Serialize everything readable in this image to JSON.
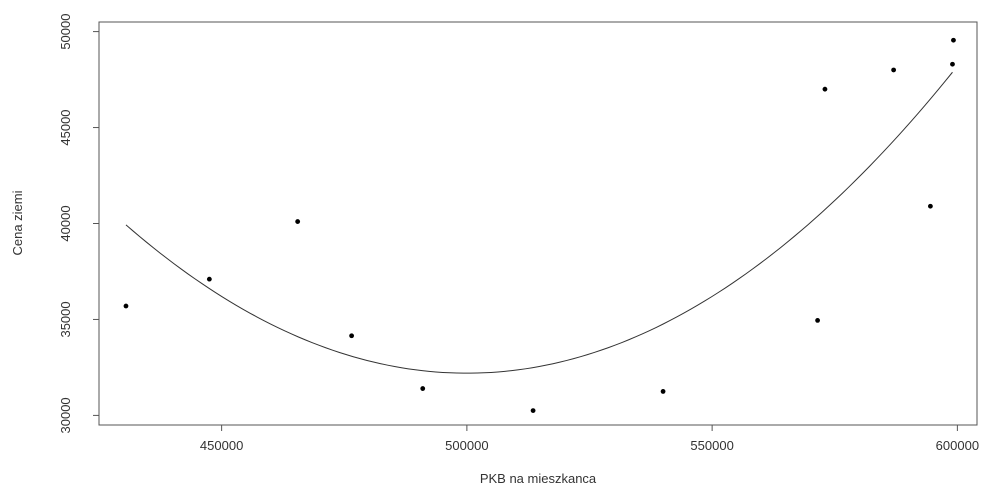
{
  "chart_data": {
    "type": "scatter",
    "title": "",
    "xlabel": "PKB na mieszkanca",
    "ylabel": "Cena ziemi",
    "xlim": [
      425000,
      604000
    ],
    "ylim": [
      29500,
      50500
    ],
    "xticks": [
      450000,
      500000,
      550000,
      600000
    ],
    "yticks": [
      30000,
      35000,
      40000,
      45000,
      50000
    ],
    "points": [
      {
        "x": 430500,
        "y": 35700
      },
      {
        "x": 447500,
        "y": 37100
      },
      {
        "x": 465500,
        "y": 40100
      },
      {
        "x": 476500,
        "y": 34150
      },
      {
        "x": 491000,
        "y": 31400
      },
      {
        "x": 513500,
        "y": 30250
      },
      {
        "x": 540000,
        "y": 31250
      },
      {
        "x": 571500,
        "y": 34950
      },
      {
        "x": 573000,
        "y": 47000
      },
      {
        "x": 587000,
        "y": 48000
      },
      {
        "x": 594500,
        "y": 40900
      },
      {
        "x": 599000,
        "y": 48300
      },
      {
        "x": 599200,
        "y": 49550
      }
    ],
    "fit_curve": {
      "type": "quadratic",
      "x_range": [
        430500,
        599000
      ],
      "vertex_x": 500000,
      "vertex_y": 32200,
      "curvature": 1.6e-06
    },
    "grid": false,
    "box": true,
    "colors": {
      "points": "#000000",
      "line": "#333333",
      "axes": "#555555"
    }
  }
}
